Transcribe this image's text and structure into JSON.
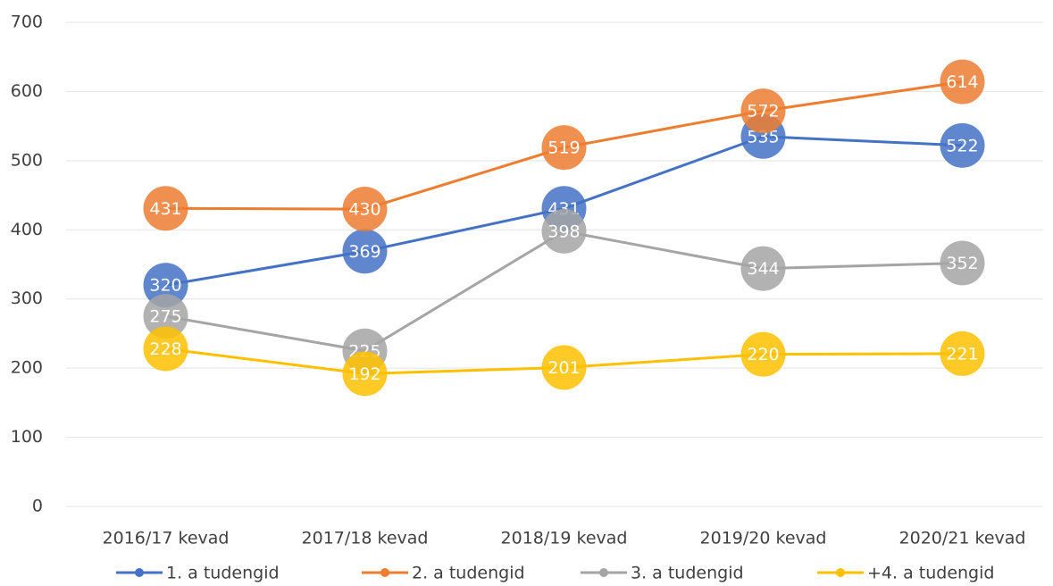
{
  "chart_data": {
    "type": "line",
    "categories": [
      "2016/17 kevad",
      "2017/18 kevad",
      "2018/19 kevad",
      "2019/20 kevad",
      "2020/21 kevad"
    ],
    "series": [
      {
        "name": "1. a tudengid",
        "color": "#4472c4",
        "values": [
          320,
          369,
          431,
          535,
          522
        ]
      },
      {
        "name": "2. a tudengid",
        "color": "#ed7d31",
        "values": [
          431,
          430,
          519,
          572,
          614
        ]
      },
      {
        "name": "3. a tudengid",
        "color": "#a5a5a5",
        "values": [
          275,
          225,
          398,
          344,
          352
        ]
      },
      {
        "name": "+4. a tudengid",
        "color": "#ffc000",
        "values": [
          228,
          192,
          201,
          220,
          221
        ]
      }
    ],
    "ylim": [
      0,
      700
    ],
    "yticks": [
      0,
      100,
      200,
      300,
      400,
      500,
      600,
      700
    ],
    "grid": true,
    "legend": "bottom"
  }
}
